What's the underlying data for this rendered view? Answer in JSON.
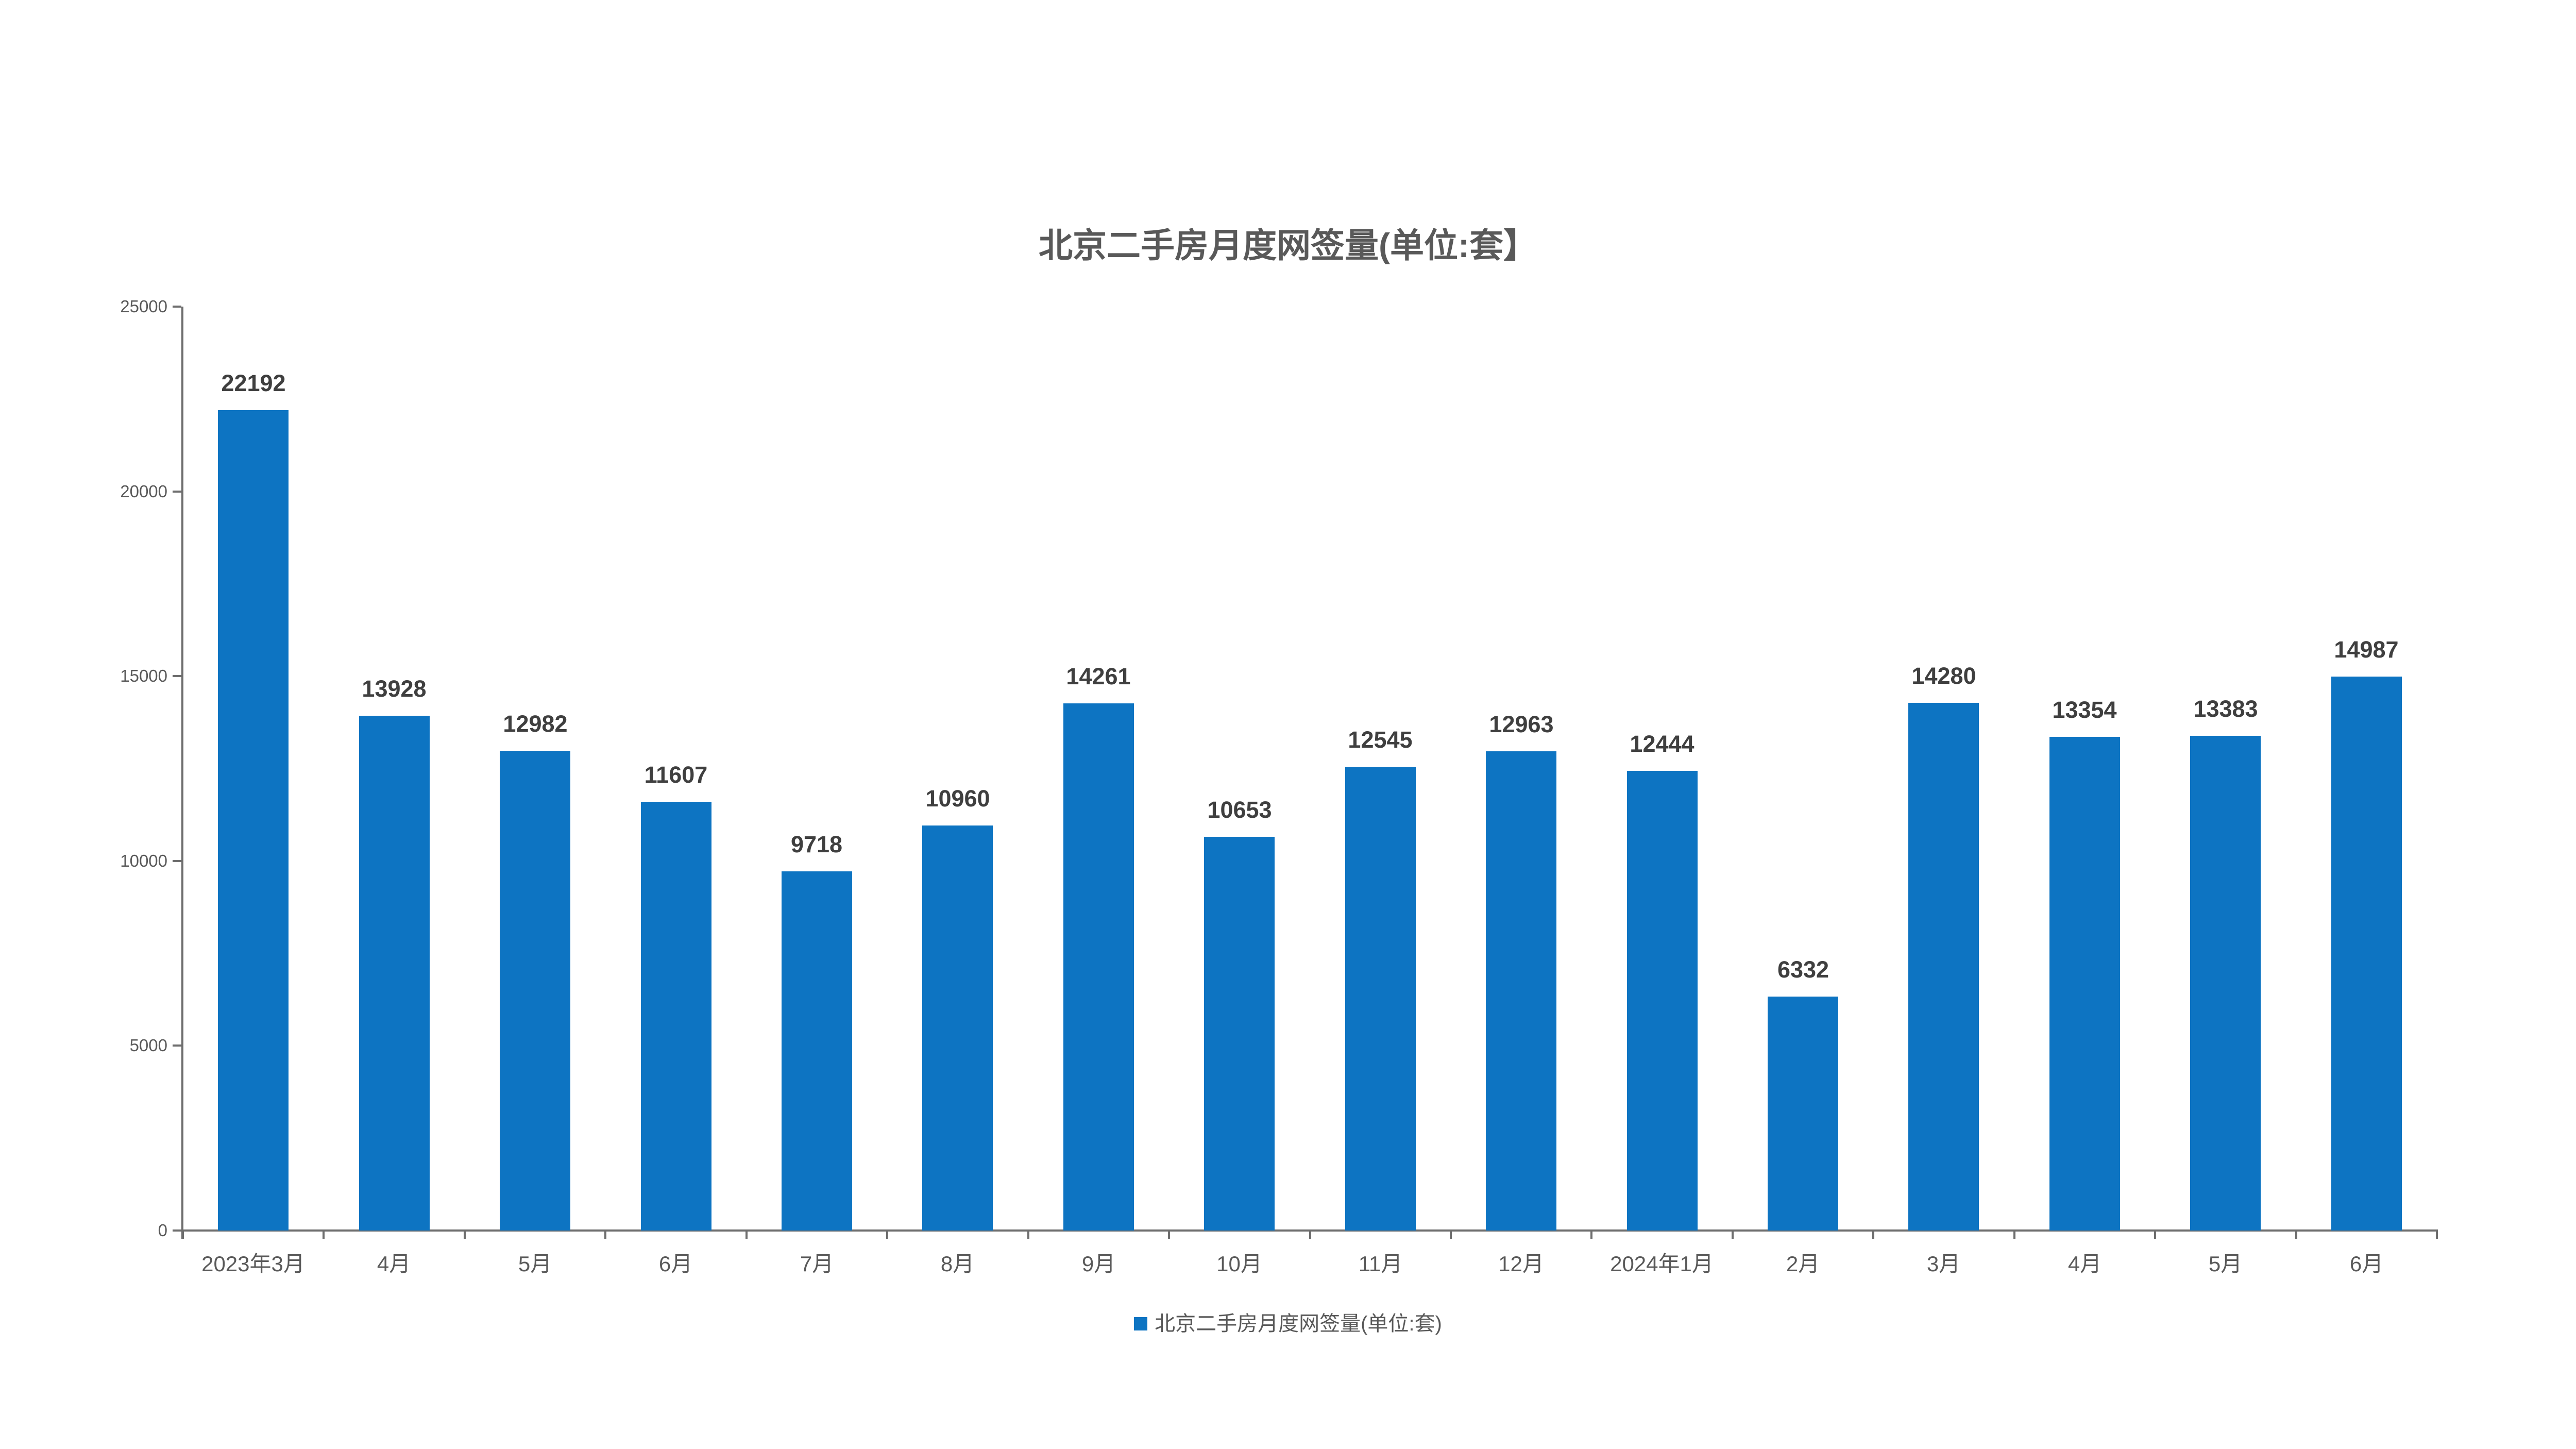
{
  "page": {
    "background": "#ffffff"
  },
  "chart_data": {
    "type": "bar",
    "title": "北京二手房月度网签量(单位:套】",
    "categories": [
      "2023年3月",
      "4月",
      "5月",
      "6月",
      "7月",
      "8月",
      "9月",
      "10月",
      "11月",
      "12月",
      "2024年1月",
      "2月",
      "3月",
      "4月",
      "5月",
      "6月"
    ],
    "series": [
      {
        "name": "北京二手房月度网签量(单位:套)",
        "values": [
          22192,
          13928,
          12982,
          11607,
          9718,
          10960,
          14261,
          10653,
          12545,
          12963,
          12444,
          6332,
          14280,
          13354,
          13383,
          14987
        ]
      }
    ],
    "xlabel": "",
    "ylabel": "",
    "ylim": [
      0,
      25000
    ],
    "y_ticks": [
      0,
      5000,
      10000,
      15000,
      20000,
      25000
    ],
    "grid": false,
    "legend_position": "bottom",
    "data_labels": true
  },
  "legend": {
    "label": "北京二手房月度网签量(单位:套)"
  },
  "colors": {
    "bar": "#0d74c2",
    "axis": "#6e6e6e",
    "tick_label": "#595959",
    "data_label": "#3f3f3f",
    "title": "#595959"
  }
}
